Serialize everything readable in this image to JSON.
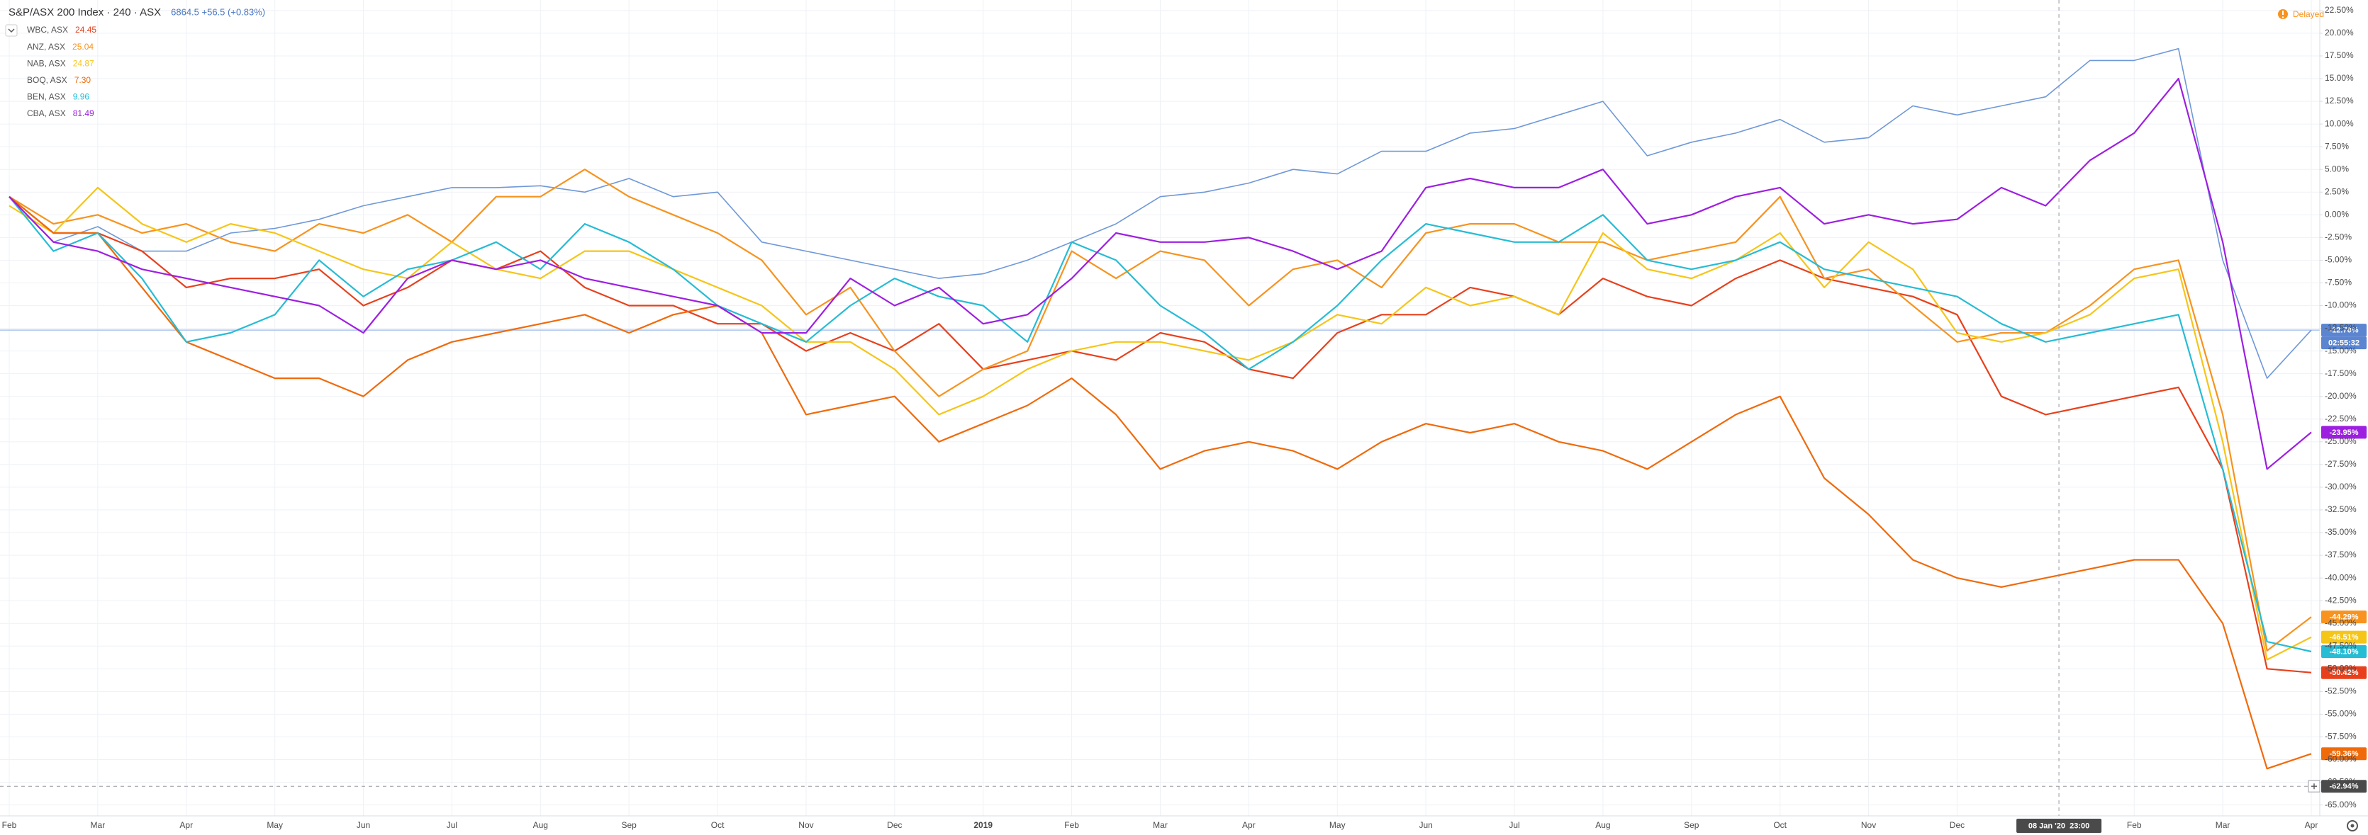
{
  "chart_data": {
    "type": "line",
    "delayed": "Delayed",
    "quote": "6864.5 +56.5 (+0.83%)",
    "countdown": "02:55:32",
    "crosshair": {
      "x_label": "08 Jan '20  23:00",
      "y": -62.94,
      "y_label": "-62.94%"
    },
    "categories": [
      "Feb",
      null,
      "Mar",
      null,
      "Apr",
      null,
      "May",
      null,
      "Jun",
      null,
      "Jul",
      null,
      "Aug",
      null,
      "Sep",
      null,
      "Oct",
      null,
      "Nov",
      null,
      "Dec",
      null,
      "2019",
      null,
      "Feb",
      null,
      "Mar",
      null,
      "Apr",
      null,
      "May",
      null,
      "Jun",
      null,
      "Jul",
      null,
      "Aug",
      null,
      "Sep",
      null,
      "Oct",
      null,
      "Nov",
      null,
      "Dec",
      null,
      null,
      null,
      "Feb",
      null,
      "Mar",
      null,
      "Apr"
    ],
    "ylim": [
      -66.2,
      23.66
    ],
    "yticks": [
      {
        "value": -65,
        "label": "-65.00%"
      },
      {
        "value": -62.5,
        "label": "-62.50%"
      },
      {
        "value": -60,
        "label": "-60.00%"
      },
      {
        "value": -57.5,
        "label": "-57.50%"
      },
      {
        "value": -55,
        "label": "-55.00%"
      },
      {
        "value": -52.5,
        "label": "-52.50%"
      },
      {
        "value": -50,
        "label": "-50.00%"
      },
      {
        "value": -47.5,
        "label": "-47.50%"
      },
      {
        "value": -45,
        "label": "-45.00%"
      },
      {
        "value": -42.5,
        "label": "-42.50%"
      },
      {
        "value": -40,
        "label": "-40.00%"
      },
      {
        "value": -37.5,
        "label": "-37.50%"
      },
      {
        "value": -35,
        "label": "-35.00%"
      },
      {
        "value": -32.5,
        "label": "-32.50%"
      },
      {
        "value": -30,
        "label": "-30.00%"
      },
      {
        "value": -27.5,
        "label": "-27.50%"
      },
      {
        "value": -25,
        "label": "-25.00%"
      },
      {
        "value": -22.5,
        "label": "-22.50%"
      },
      {
        "value": -20,
        "label": "-20.00%"
      },
      {
        "value": -17.5,
        "label": "-17.50%"
      },
      {
        "value": -15,
        "label": "-15.00%"
      },
      {
        "value": -12.5,
        "label": "-12.50%"
      },
      {
        "value": -10,
        "label": "-10.00%"
      },
      {
        "value": -7.5,
        "label": "-7.50%"
      },
      {
        "value": -5,
        "label": "-5.00%"
      },
      {
        "value": -2.5,
        "label": "-2.50%"
      },
      {
        "value": 0,
        "label": "0.00%"
      },
      {
        "value": 2.5,
        "label": "2.50%"
      },
      {
        "value": 5,
        "label": "5.00%"
      },
      {
        "value": 7.5,
        "label": "7.50%"
      },
      {
        "value": 10,
        "label": "10.00%"
      },
      {
        "value": 12.5,
        "label": "12.50%"
      },
      {
        "value": 15,
        "label": "15.00%"
      },
      {
        "value": 17.5,
        "label": "17.50%"
      },
      {
        "value": 20,
        "label": "20.00%"
      },
      {
        "value": 22.5,
        "label": "22.50%"
      }
    ],
    "grid": true,
    "series": [
      {
        "name": "S&P/ASX 200 Index · 240 · ASX",
        "color": "#6f98d8",
        "last_label": "-12.70%",
        "values": [
          2,
          -3,
          -1.3,
          -4,
          -4,
          -2,
          -1.5,
          -0.5,
          1,
          2,
          3,
          3,
          3.2,
          2.5,
          4,
          2,
          2.5,
          -3,
          -4,
          -5,
          -6,
          -7,
          -6.5,
          -5,
          -3,
          -1,
          2,
          2.5,
          3.5,
          5,
          4.5,
          7,
          7,
          9,
          9.5,
          11,
          12.5,
          6.5,
          8,
          9,
          10.5,
          8,
          8.5,
          12,
          11,
          12,
          13,
          17,
          17,
          18.3,
          -5,
          -18,
          -12.7
        ]
      },
      {
        "name": "WBC, ASX",
        "price": "24.45",
        "color": "#e8401c",
        "last_label": "-50.42%",
        "values": [
          2,
          -2,
          -2,
          -4,
          -8,
          -7,
          -7,
          -6,
          -10,
          -8,
          -5,
          -6,
          -4,
          -8,
          -10,
          -10,
          -12,
          -12,
          -15,
          -13,
          -15,
          -12,
          -17,
          -16,
          -15,
          -16,
          -13,
          -14,
          -17,
          -18,
          -13,
          -11,
          -11,
          -8,
          -9,
          -11,
          -7,
          -9,
          -10,
          -7,
          -5,
          -7,
          -8,
          -9,
          -11,
          -20,
          -22,
          -21,
          -20,
          -19,
          -28,
          -50,
          -50.42
        ]
      },
      {
        "name": "ANZ, ASX",
        "price": "25.04",
        "color": "#f7931e",
        "last_label": "-44.29%",
        "values": [
          2,
          -1,
          0,
          -2,
          -1,
          -3,
          -4,
          -1,
          -2,
          0,
          -3,
          2,
          2,
          5,
          2,
          0,
          -2,
          -5,
          -11,
          -8,
          -15,
          -20,
          -17,
          -15,
          -4,
          -7,
          -4,
          -5,
          -10,
          -6,
          -5,
          -8,
          -2,
          -1,
          -1,
          -3,
          -3,
          -5,
          -4,
          -3,
          2,
          -7,
          -6,
          -10,
          -14,
          -13,
          -13,
          -10,
          -6,
          -5,
          -22,
          -48,
          -44.29
        ]
      },
      {
        "name": "NAB, ASX",
        "price": "24.87",
        "color": "#f5c518",
        "last_label": "-46.51%",
        "values": [
          1,
          -2,
          3,
          -1,
          -3,
          -1,
          -2,
          -4,
          -6,
          -7,
          -3,
          -6,
          -7,
          -4,
          -4,
          -6,
          -8,
          -10,
          -14,
          -14,
          -17,
          -22,
          -20,
          -17,
          -15,
          -14,
          -14,
          -15,
          -16,
          -14,
          -11,
          -12,
          -8,
          -10,
          -9,
          -11,
          -2,
          -6,
          -7,
          -5,
          -2,
          -8,
          -3,
          -6,
          -13,
          -14,
          -13,
          -11,
          -7,
          -6,
          -25,
          -49,
          -46.51
        ]
      },
      {
        "name": "BOQ, ASX",
        "price": "7.30",
        "color": "#f06a0a",
        "last_label": "-59.36%",
        "values": [
          2,
          -2,
          -2,
          -8,
          -14,
          -16,
          -18,
          -18,
          -20,
          -16,
          -14,
          -13,
          -12,
          -11,
          -13,
          -11,
          -10,
          -13,
          -22,
          -21,
          -20,
          -25,
          -23,
          -21,
          -18,
          -22,
          -28,
          -26,
          -25,
          -26,
          -28,
          -25,
          -23,
          -24,
          -23,
          -25,
          -26,
          -28,
          -25,
          -22,
          -20,
          -29,
          -33,
          -38,
          -40,
          -41,
          -40,
          -39,
          -38,
          -38,
          -45,
          -61,
          -59.36
        ]
      },
      {
        "name": "BEN, ASX",
        "price": "9.96",
        "color": "#26bcd4",
        "last_label": "-48.10%",
        "values": [
          2,
          -4,
          -2,
          -7,
          -14,
          -13,
          -11,
          -5,
          -9,
          -6,
          -5,
          -3,
          -6,
          -1,
          -3,
          -6,
          -10,
          -12,
          -14,
          -10,
          -7,
          -9,
          -10,
          -14,
          -3,
          -5,
          -10,
          -13,
          -17,
          -14,
          -10,
          -5,
          -1,
          -2,
          -3,
          -3,
          0,
          -5,
          -6,
          -5,
          -3,
          -6,
          -7,
          -8,
          -9,
          -12,
          -14,
          -13,
          -12,
          -11,
          -28,
          -47,
          -48.1
        ]
      },
      {
        "name": "CBA, ASX",
        "price": "81.49",
        "color": "#9d1fe0",
        "last_label": "-23.95%",
        "values": [
          2,
          -3,
          -4,
          -6,
          -7,
          -8,
          -9,
          -10,
          -13,
          -7,
          -5,
          -6,
          -5,
          -7,
          -8,
          -9,
          -10,
          -13,
          -13,
          -7,
          -10,
          -8,
          -12,
          -11,
          -7,
          -2,
          -3,
          -3,
          -2.5,
          -4,
          -6,
          -4,
          3,
          4,
          3,
          3,
          5,
          -1,
          0,
          2,
          3,
          -1,
          0,
          -1,
          -0.5,
          3,
          1,
          6,
          9,
          15,
          -3,
          -28,
          -23.95
        ]
      }
    ]
  }
}
